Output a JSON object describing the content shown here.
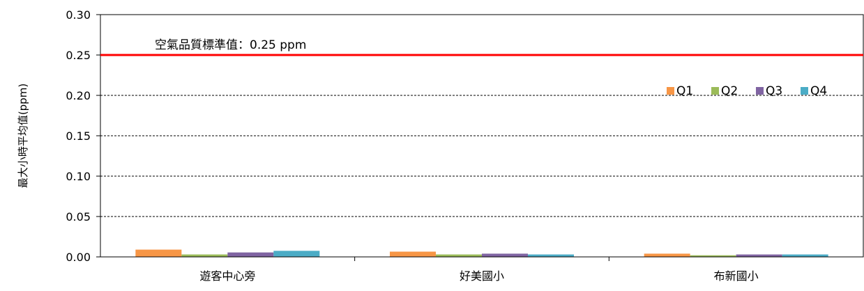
{
  "chart_data": {
    "type": "bar",
    "title": "",
    "xlabel": "",
    "ylabel": "最大小時平均值(ppm)",
    "categories": [
      "遊客中心旁",
      "好美國小",
      "布新國小"
    ],
    "series": [
      {
        "name": "Q1",
        "color": "#F79646",
        "values": [
          0.009,
          0.0065,
          0.004
        ]
      },
      {
        "name": "Q2",
        "color": "#9BBB59",
        "values": [
          0.003,
          0.003,
          0.002
        ]
      },
      {
        "name": "Q3",
        "color": "#8064A2",
        "values": [
          0.0055,
          0.004,
          0.003
        ]
      },
      {
        "name": "Q4",
        "color": "#4BACC6",
        "values": [
          0.0075,
          0.003,
          0.003
        ]
      }
    ],
    "ylim": [
      0,
      0.3
    ],
    "y_ticks": [
      "0.00",
      "0.05",
      "0.10",
      "0.15",
      "0.20",
      "0.25",
      "0.30"
    ],
    "y_tick_values": [
      0,
      0.05,
      0.1,
      0.15,
      0.2,
      0.25,
      0.3
    ],
    "grid": "dashed horizontal",
    "legend_position": "top-right",
    "reference_line": {
      "value": 0.25,
      "label": "空氣品質標準值：0.25 ppm",
      "color": "#FF0000"
    }
  }
}
